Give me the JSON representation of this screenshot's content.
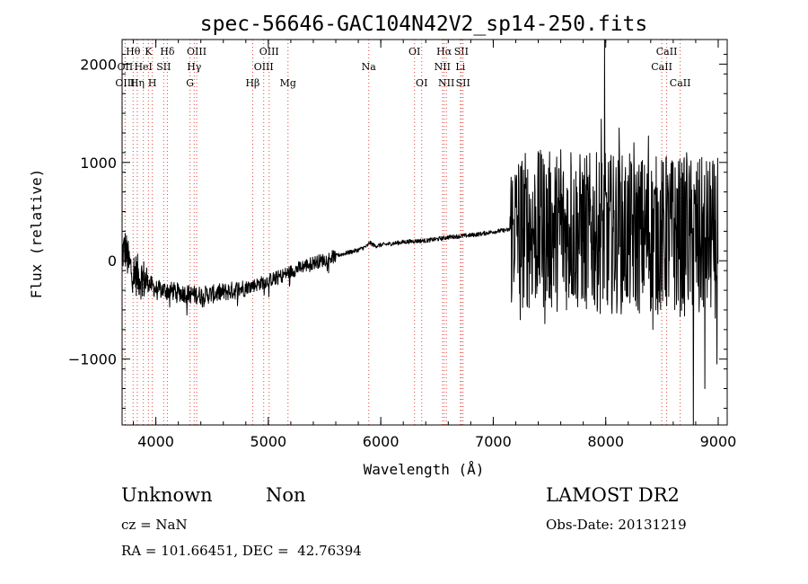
{
  "chart_data": {
    "type": "line",
    "title": "spec-56646-GAC104N42V2_sp14-250.fits",
    "xlabel": "Wavelength (Å)",
    "ylabel": "Flux (relative)",
    "xlim": [
      3700,
      9080
    ],
    "ylim": [
      -1670,
      2250
    ],
    "x_ticks": [
      4000,
      5000,
      6000,
      7000,
      8000,
      9000
    ],
    "x_tick_labels": [
      "4000",
      "5000",
      "6000",
      "7000",
      "8000",
      "9000"
    ],
    "y_ticks": [
      -1000,
      0,
      1000,
      2000
    ],
    "y_tick_labels": [
      "−1000",
      "0",
      "1000",
      "2000"
    ],
    "grid": false,
    "line_color": "#000000",
    "annotation_line_color": "#e0433a",
    "spectrum_anchors": [
      [
        3700,
        80
      ],
      [
        3730,
        120
      ],
      [
        3760,
        -40
      ],
      [
        3800,
        -120
      ],
      [
        3850,
        -160
      ],
      [
        3900,
        -200
      ],
      [
        3950,
        -240
      ],
      [
        4000,
        -290
      ],
      [
        4100,
        -300
      ],
      [
        4200,
        -320
      ],
      [
        4300,
        -340
      ],
      [
        4400,
        -350
      ],
      [
        4500,
        -340
      ],
      [
        4600,
        -320
      ],
      [
        4700,
        -300
      ],
      [
        4800,
        -270
      ],
      [
        4900,
        -240
      ],
      [
        5000,
        -200
      ],
      [
        5100,
        -160
      ],
      [
        5200,
        -110
      ],
      [
        5300,
        -60
      ],
      [
        5400,
        -20
      ],
      [
        5500,
        10
      ],
      [
        5600,
        50
      ],
      [
        5700,
        80
      ],
      [
        5800,
        110
      ],
      [
        5880,
        150
      ],
      [
        5900,
        185
      ],
      [
        5950,
        150
      ],
      [
        6000,
        160
      ],
      [
        6100,
        175
      ],
      [
        6200,
        190
      ],
      [
        6300,
        200
      ],
      [
        6400,
        205
      ],
      [
        6500,
        220
      ],
      [
        6600,
        240
      ],
      [
        6700,
        250
      ],
      [
        6800,
        260
      ],
      [
        6900,
        275
      ],
      [
        7000,
        295
      ],
      [
        7100,
        310
      ],
      [
        7200,
        320
      ]
    ],
    "noise_segments": [
      {
        "from": 3700,
        "to": 3920,
        "amplitude": 220
      },
      {
        "from": 3920,
        "to": 4800,
        "amplitude": 95
      },
      {
        "from": 4800,
        "to": 5600,
        "amplitude": 70
      },
      {
        "from": 5600,
        "to": 7150,
        "amplitude": 22
      },
      {
        "from": 7150,
        "to": 9000,
        "amplitude": 820
      }
    ],
    "spikes": [
      [
        7190,
        -40
      ],
      [
        7240,
        -600
      ],
      [
        7430,
        1080
      ],
      [
        7460,
        -640
      ],
      [
        7600,
        1130
      ],
      [
        7690,
        1100
      ],
      [
        7820,
        -320
      ],
      [
        7960,
        1440
      ],
      [
        7990,
        2250
      ],
      [
        8010,
        -400
      ],
      [
        8120,
        1350
      ],
      [
        8250,
        1200
      ],
      [
        8380,
        1270
      ],
      [
        8420,
        -700
      ],
      [
        8540,
        1060
      ],
      [
        8600,
        1000
      ],
      [
        8720,
        1100
      ],
      [
        8780,
        -1670
      ],
      [
        8830,
        -520
      ],
      [
        8880,
        -1300
      ],
      [
        8960,
        30
      ],
      [
        8990,
        -1050
      ]
    ],
    "lines": [
      {
        "label": "Hθ",
        "x": 3798,
        "row": 1
      },
      {
        "label": "OII",
        "x": 3727,
        "row": 2
      },
      {
        "label": "OIII",
        "x": 3727,
        "row": 3
      },
      {
        "label": "K",
        "x": 3934,
        "row": 1
      },
      {
        "label": "HeI",
        "x": 3889,
        "row": 2
      },
      {
        "label": "Hη",
        "x": 3835,
        "row": 3
      },
      {
        "label": "H",
        "x": 3969,
        "row": 3
      },
      {
        "label": "SII",
        "x": 4070,
        "row": 2
      },
      {
        "label": "Hδ",
        "x": 4102,
        "row": 1
      },
      {
        "label": "OIII",
        "x": 4363,
        "row": 1
      },
      {
        "label": "Hγ",
        "x": 4341,
        "row": 2
      },
      {
        "label": "G",
        "x": 4304,
        "row": 3
      },
      {
        "label": "OIII",
        "x": 5007,
        "row": 1
      },
      {
        "label": "OIII",
        "x": 4959,
        "row": 2
      },
      {
        "label": "Hβ",
        "x": 4861,
        "row": 3
      },
      {
        "label": "Mg",
        "x": 5175,
        "row": 3
      },
      {
        "label": "Na",
        "x": 5893,
        "row": 2
      },
      {
        "label": "OI",
        "x": 6300,
        "row": 1
      },
      {
        "label": "OI",
        "x": 6364,
        "row": 3
      },
      {
        "label": "Hα",
        "x": 6563,
        "row": 1
      },
      {
        "label": "SII",
        "x": 6716,
        "row": 1
      },
      {
        "label": "NII",
        "x": 6548,
        "row": 2
      },
      {
        "label": "Li",
        "x": 6708,
        "row": 2
      },
      {
        "label": "NII",
        "x": 6583,
        "row": 3
      },
      {
        "label": "SII",
        "x": 6731,
        "row": 3
      },
      {
        "label": "CaII",
        "x": 8542,
        "row": 1
      },
      {
        "label": "CaII",
        "x": 8498,
        "row": 2
      },
      {
        "label": "CaII",
        "x": 8662,
        "row": 3
      }
    ]
  },
  "footer": {
    "classification": "Unknown",
    "subclass": "Non",
    "survey": "LAMOST DR2",
    "redshift": "cz = NaN",
    "obs_date": "Obs-Date: 20131219",
    "coords": "RA = 101.66451, DEC =  42.76394"
  }
}
